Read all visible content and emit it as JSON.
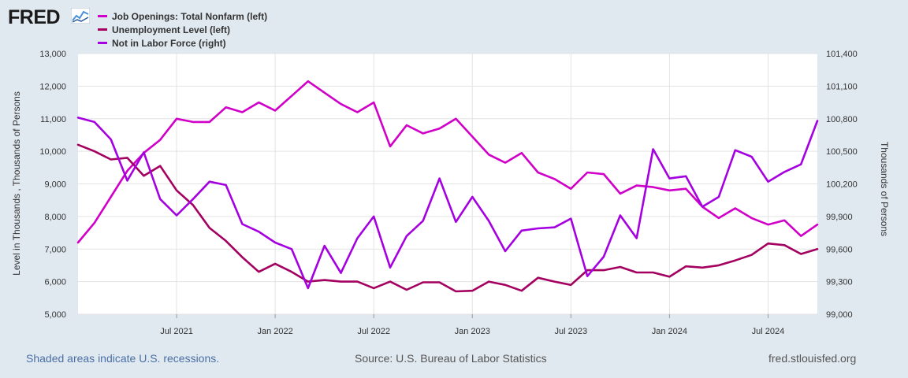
{
  "logo": {
    "text": "FRED",
    "icon": "fred-chart-icon"
  },
  "legend": [
    {
      "label": "Job Openings: Total Nonfarm (left)",
      "color": "#d000c8"
    },
    {
      "label": "Unemployment Level (left)",
      "color": "#a3005f"
    },
    {
      "label": "Not in Labor Force (right)",
      "color": "#a400e0"
    }
  ],
  "footer": {
    "recession_note": "Shaded areas indicate U.S. recessions.",
    "source": "Source: U.S. Bureau of Labor Statistics",
    "url": "fred.stlouisfed.org"
  },
  "chart_data": {
    "type": "line",
    "left_axis_label": "Level in Thousands , Thousands of Persons",
    "right_axis_label": "Thousands of Persons",
    "left_ylim": [
      5000,
      13000
    ],
    "right_ylim": [
      99000,
      101400
    ],
    "left_ticks": [
      "13,000",
      "12,000",
      "11,000",
      "10,000",
      "9,000",
      "8,000",
      "7,000",
      "6,000",
      "5,000"
    ],
    "right_ticks": [
      "101,400",
      "101,100",
      "100,800",
      "100,500",
      "100,200",
      "99,900",
      "99,600",
      "99,300",
      "99,000"
    ],
    "x_ticks": [
      {
        "label": "Jul 2021",
        "index": 6
      },
      {
        "label": "Jan 2022",
        "index": 12
      },
      {
        "label": "Jul 2022",
        "index": 18
      },
      {
        "label": "Jan 2023",
        "index": 24
      },
      {
        "label": "Jul 2023",
        "index": 30
      },
      {
        "label": "Jan 2024",
        "index": 36
      },
      {
        "label": "Jul 2024",
        "index": 42
      }
    ],
    "x_start": "Jan 2021",
    "series": [
      {
        "name": "Job Openings: Total Nonfarm (left)",
        "axis": "left",
        "color": "#d000c8",
        "values": [
          7200,
          7800,
          8600,
          9400,
          9950,
          10350,
          11000,
          10900,
          10900,
          11350,
          11200,
          11500,
          11250,
          11700,
          12150,
          11800,
          11450,
          11200,
          11500,
          10150,
          10800,
          10550,
          10700,
          11000,
          10450,
          9900,
          9650,
          9950,
          9350,
          9150,
          8850,
          9350,
          9300,
          8700,
          8950,
          8900,
          8800,
          8850,
          8300,
          7950,
          8250,
          7950,
          7750,
          7880,
          7400,
          7750
        ]
      },
      {
        "name": "Unemployment Level (left)",
        "axis": "left",
        "color": "#a3005f",
        "values": [
          10200,
          10000,
          9750,
          9800,
          9250,
          9550,
          8800,
          8350,
          7650,
          7250,
          6750,
          6300,
          6550,
          6300,
          6000,
          6050,
          6000,
          6000,
          5800,
          6000,
          5750,
          5980,
          5980,
          5700,
          5720,
          6000,
          5900,
          5720,
          6120,
          6000,
          5900,
          6350,
          6350,
          6450,
          6280,
          6280,
          6150,
          6470,
          6430,
          6500,
          6650,
          6820,
          7170,
          7120,
          6850,
          7000
        ]
      },
      {
        "name": "Not in Labor Force (right)",
        "axis": "right",
        "color": "#a400e0",
        "values": [
          100810,
          100770,
          100610,
          100230,
          100490,
          100060,
          99910,
          100060,
          100220,
          100190,
          99830,
          99760,
          99660,
          99600,
          99240,
          99630,
          99380,
          99700,
          99900,
          99430,
          99720,
          99860,
          100250,
          99850,
          100080,
          99860,
          99580,
          99770,
          99790,
          99800,
          99880,
          99350,
          99530,
          99910,
          99700,
          100520,
          100250,
          100270,
          99990,
          100080,
          100510,
          100450,
          100220,
          100310,
          100380,
          100780
        ]
      }
    ]
  }
}
